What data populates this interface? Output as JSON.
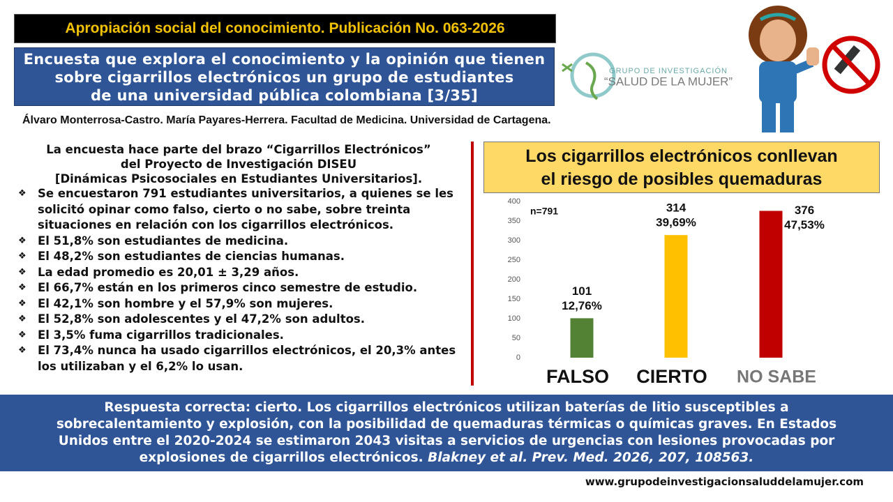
{
  "header": {
    "publication": "Apropiación social del conocimiento. Publicación No. 063-2026",
    "title_lines": [
      "Encuesta que explora el conocimiento y la opinión que tienen",
      "sobre cigarrillos electrónicos un grupo de estudiantes",
      "de una universidad pública colombiana [3/35]"
    ],
    "logo_top": "GRUPO DE INVESTIGACIÓN",
    "logo_name": "“SALUD DE LA MUJER”",
    "authors": "Álvaro Monterrosa-Castro. María Payares-Herrera. Facultad de Medicina. Universidad de Cartagena."
  },
  "intro": {
    "heading_lines": [
      "La encuesta hace parte del brazo “Cigarrillos Electrónicos”",
      "del Proyecto de Investigación DISEU",
      "[Dinámicas Psicosociales en Estudiantes Universitarios]."
    ],
    "bullets": [
      "Se encuestaron 791 estudiantes universitarios, a quienes se les solicitó opinar como falso, cierto o no sabe, sobre treinta situaciones en relación con los cigarrillos electrónicos.",
      "El 51,8% son estudiantes de medicina.",
      "El 48,2% son estudiantes de ciencias humanas.",
      "La edad promedio es 20,01 ± 3,29 años.",
      "El 66,7% están en los primeros cinco semestre de estudio.",
      "El 42,1% son hombre y el 57,9% son mujeres.",
      "El 52,8% son adolescentes y el 47,2% son adultos.",
      "El 3,5% fuma cigarrillos tradicionales.",
      "El 73,4% nunca ha usado cigarrillos electrónicos, el 20,3% antes los utilizaban y el 6,2% lo usan."
    ]
  },
  "chart_data": {
    "type": "bar",
    "title_lines": [
      "Los cigarrillos electrónicos conllevan",
      "el riesgo de posibles quemaduras"
    ],
    "annotation": "n=791",
    "categories": [
      "FALSO",
      "CIERTO",
      "NO SABE"
    ],
    "values": [
      101,
      314,
      376
    ],
    "colors": [
      "#548235",
      "#ffc000",
      "#c00000"
    ],
    "shares": {
      "values": [
        12.76,
        39.69,
        47.53
      ],
      "value_labels": [
        "12,76%",
        "39,69%",
        "47,53%"
      ]
    },
    "ylim": [
      0,
      400
    ],
    "yticks": [
      0,
      50,
      100,
      150,
      200,
      250,
      300,
      350,
      400
    ],
    "grid": false
  },
  "footer": {
    "lines": [
      "Respuesta correcta: cierto. Los cigarrillos electrónicos utilizan baterías de litio susceptibles a",
      "sobrecalentamiento y explosión, con la posibilidad de quemaduras térmicas o químicas graves.  En Estados",
      "Unidos entre el 2020-2024 se estimaron 2043 visitas a servicios de urgencias con lesiones provocadas por"
    ],
    "last_line": "explosiones de cigarrillos electrónicos. ",
    "citation": "Blakney et al. Prev. Med. 2026, 207, 108563.",
    "url": "www.grupodeinvestigacionsaluddelamujer.com"
  }
}
